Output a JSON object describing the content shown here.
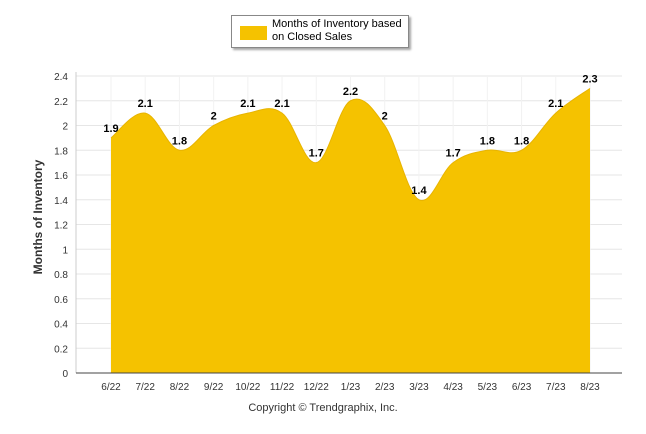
{
  "legend": {
    "label": "Months of Inventory based on Closed Sales"
  },
  "copyright": "Copyright © Trendgraphix, Inc.",
  "colors": {
    "fill": "#F5C200",
    "grid": "#E6E6E6",
    "axis": "#444444"
  },
  "chart_data": {
    "type": "area",
    "ylabel": "Months of Inventory",
    "ylim": [
      0,
      2.4
    ],
    "yticks": [
      0,
      0.2,
      0.4,
      0.6,
      0.8,
      1,
      1.2,
      1.4,
      1.6,
      1.8,
      2,
      2.2,
      2.4
    ],
    "grid": true,
    "legend_position": "top",
    "categories": [
      "6/22",
      "7/22",
      "8/22",
      "9/22",
      "10/22",
      "11/22",
      "12/22",
      "1/23",
      "2/23",
      "3/23",
      "4/23",
      "5/23",
      "6/23",
      "7/23",
      "8/23"
    ],
    "series": [
      {
        "name": "Months of Inventory based on Closed Sales",
        "values": [
          1.9,
          2.1,
          1.8,
          2,
          2.1,
          2.1,
          1.7,
          2.2,
          2,
          1.4,
          1.7,
          1.8,
          1.8,
          2.1,
          2.3
        ],
        "labels": [
          "1.9",
          "2.1",
          "1.8",
          "2",
          "2.1",
          "2.1",
          "1.7",
          "2.2",
          "2",
          "1.4",
          "1.7",
          "1.8",
          "1.8",
          "2.1",
          "2.3"
        ]
      }
    ]
  }
}
